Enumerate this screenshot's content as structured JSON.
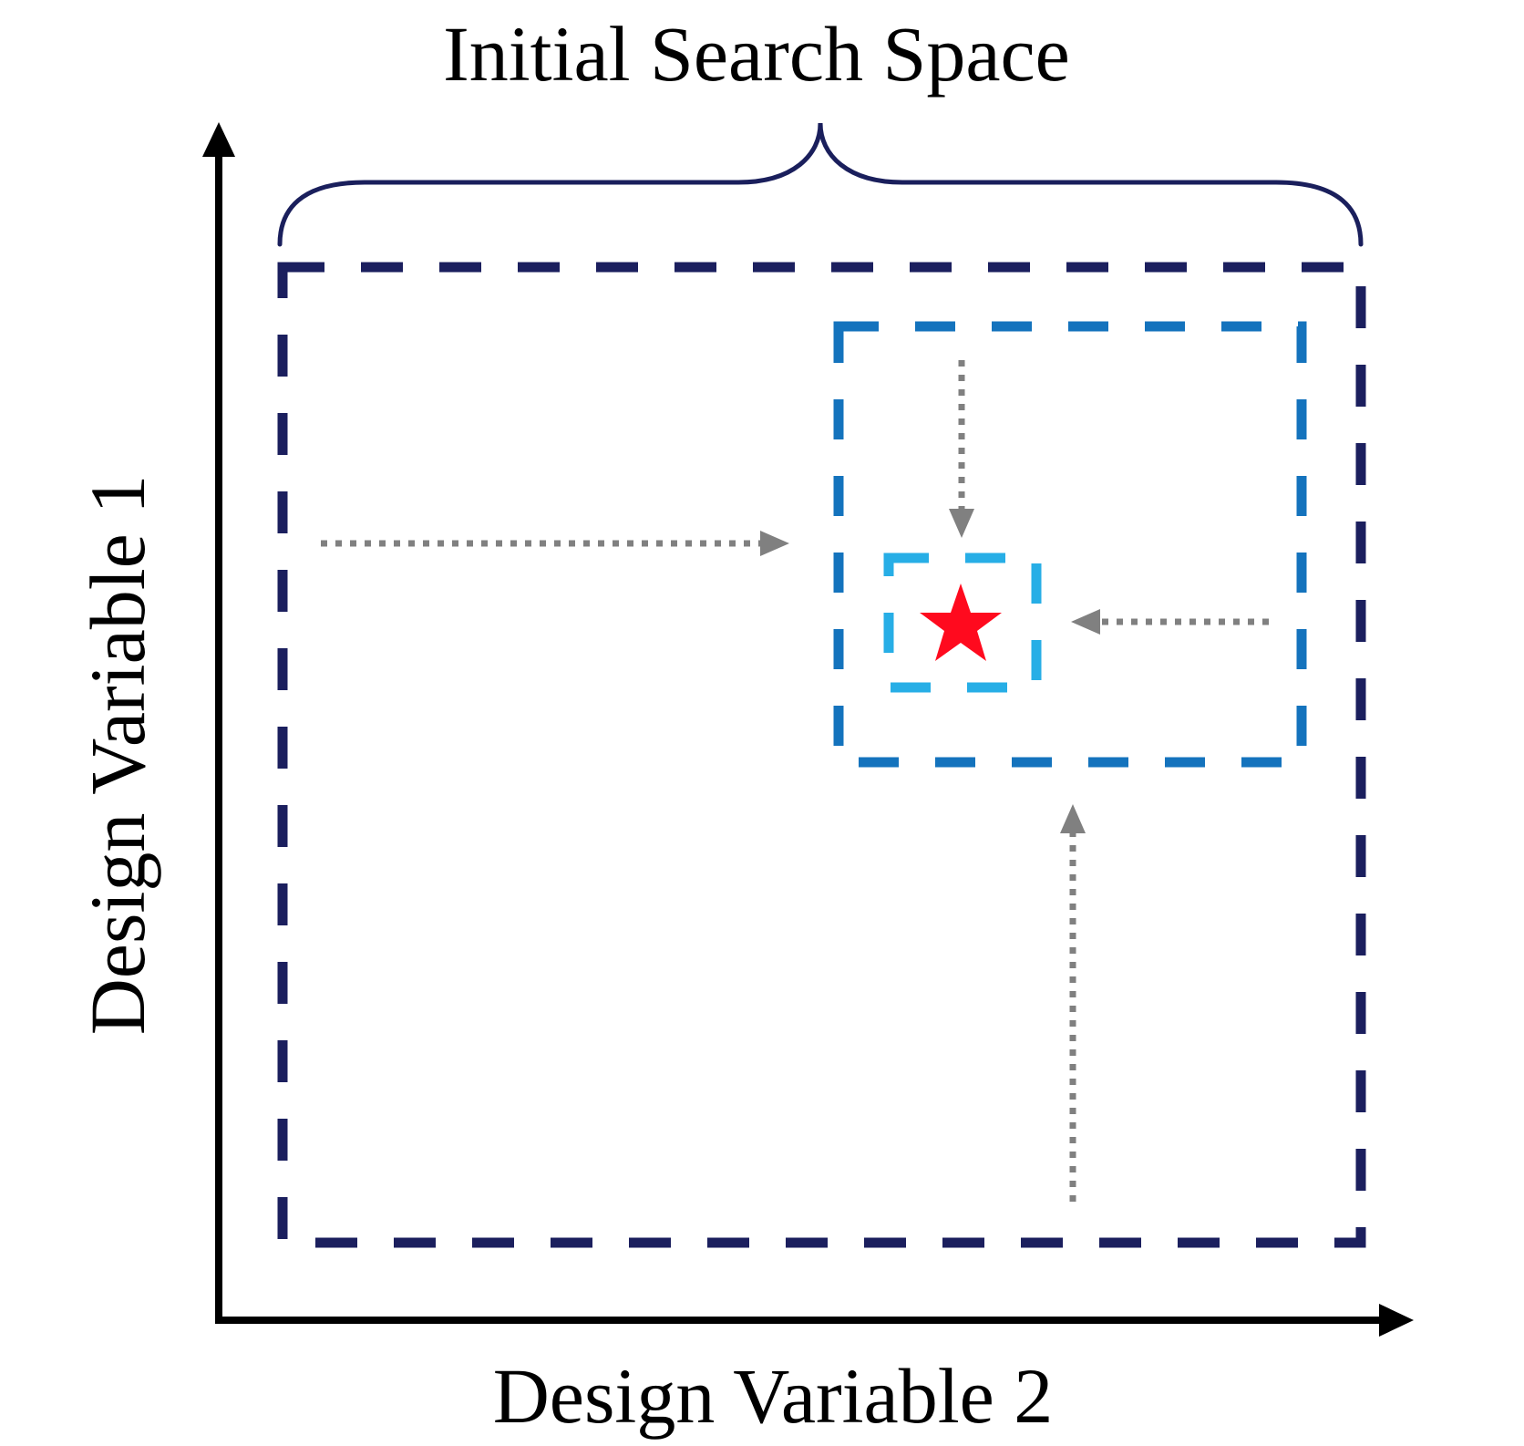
{
  "diagram": {
    "title": "Initial Search Space",
    "x_axis_label": "Design Variable 2",
    "y_axis_label": "Design Variable 1",
    "colors": {
      "axis": "#000000",
      "brace": "#1a1f5c",
      "outer_box": "#1b1f5e",
      "middle_box": "#1473bd",
      "inner_box": "#27aee6",
      "arrow": "#808080",
      "star": "#ff0a1e"
    },
    "icons": {
      "optimum_marker": "star-icon"
    }
  }
}
